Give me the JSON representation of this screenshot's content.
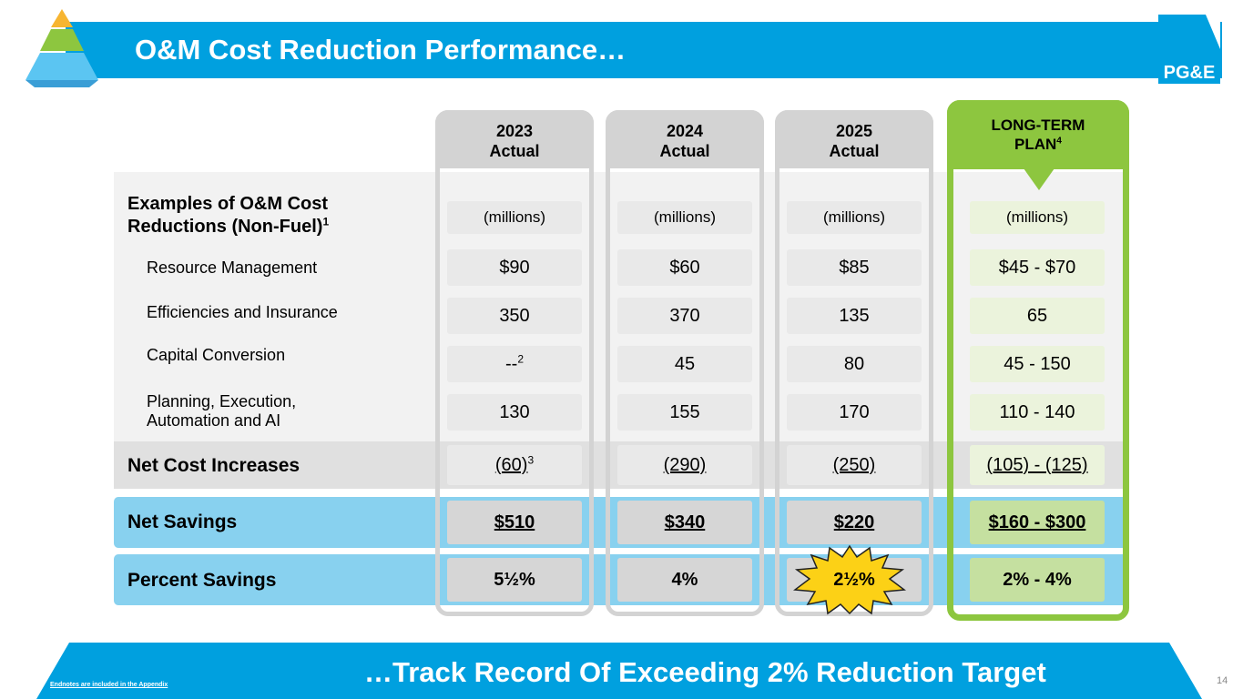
{
  "header": {
    "title": "O&M Cost Reduction Performance…",
    "logo_text": "PG&E",
    "colors": {
      "bar": "#00a0df",
      "accent_green": "#8dc63f"
    }
  },
  "icons": {
    "pyramid": "pyramid-icon",
    "logo": "pge-logo"
  },
  "columns": [
    {
      "heading_1": "2023",
      "heading_2": "Actual",
      "unit": "(millions)",
      "resource_management": "$90",
      "efficiencies_insurance": "350",
      "capital_conversion": "--",
      "capital_conversion_note": "2",
      "planning": "130",
      "net_cost_increases": "(60)",
      "net_cost_increases_note": "3",
      "net_savings": "$510",
      "percent_savings": "5½%"
    },
    {
      "heading_1": "2024",
      "heading_2": "Actual",
      "unit": "(millions)",
      "resource_management": "$60",
      "efficiencies_insurance": "370",
      "capital_conversion": "45",
      "planning": "155",
      "net_cost_increases": "(290)",
      "net_savings": "$340",
      "percent_savings": "4%"
    },
    {
      "heading_1": "2025",
      "heading_2": "Actual",
      "unit": "(millions)",
      "resource_management": "$85",
      "efficiencies_insurance": "135",
      "capital_conversion": "80",
      "planning": "170",
      "net_cost_increases": "(250)",
      "net_savings": "$220",
      "percent_savings": "2½%"
    },
    {
      "heading_1": "LONG-TERM",
      "heading_2": "PLAN",
      "heading_note": "4",
      "unit": "(millions)",
      "resource_management": "$45 - $70",
      "efficiencies_insurance": "65",
      "capital_conversion": "45 - 150",
      "planning": "110 - 140",
      "net_cost_increases": "(105) - (125)",
      "net_savings": "$160 - $300",
      "percent_savings": "2% - 4%"
    }
  ],
  "rows": {
    "examples_line1": "Examples of O&M Cost",
    "examples_line2": "Reductions (Non-Fuel)",
    "examples_note": "1",
    "resource_management": "Resource Management",
    "efficiencies_insurance": "Efficiencies and Insurance",
    "capital_conversion": "Capital Conversion",
    "planning_line1": "Planning, Execution,",
    "planning_line2": "Automation and AI",
    "net_cost_increases": "Net Cost Increases",
    "net_savings": "Net Savings",
    "percent_savings": "Percent Savings"
  },
  "footer": {
    "tagline": "…Track Record Of Exceeding 2% Reduction Target",
    "endnote": "Endnotes are included in the Appendix",
    "page_number": "14",
    "color": "#00a0df"
  }
}
